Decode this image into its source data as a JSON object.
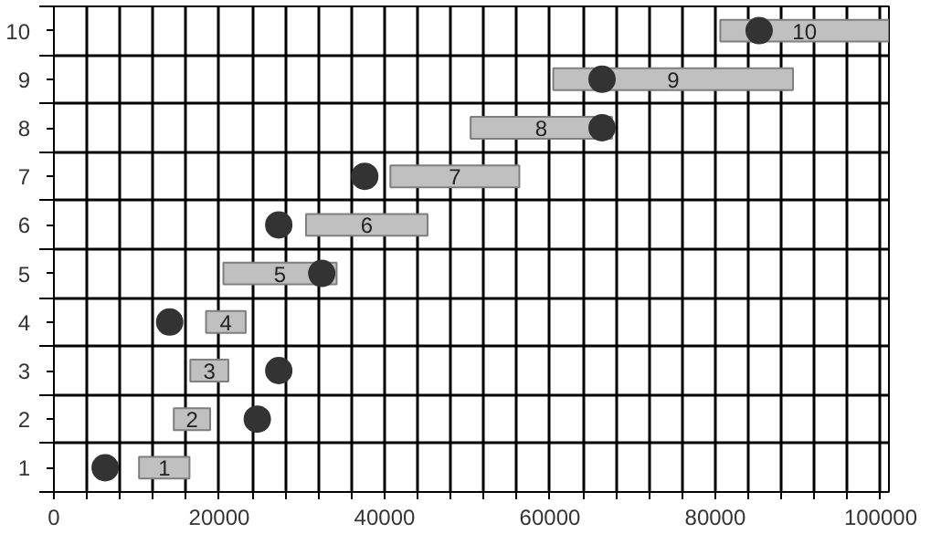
{
  "chart_data": {
    "type": "bar",
    "orientation": "horizontal",
    "categories": [
      "10",
      "9",
      "8",
      "7",
      "6",
      "5",
      "4",
      "3",
      "2",
      "1"
    ],
    "series": [
      {
        "color": "#c0c0c0",
        "base": [
          80600,
          60400,
          50400,
          40700,
          30500,
          20500,
          18400,
          16500,
          14500,
          10300
        ],
        "values": [
          20400,
          29000,
          17100,
          15600,
          14700,
          13700,
          4800,
          4600,
          4400,
          6100
        ]
      },
      {
        "type": "scatter",
        "color": "#333333",
        "values": [
          85300,
          66300,
          66300,
          37600,
          27200,
          32400,
          14000,
          27200,
          24600,
          6200
        ]
      }
    ],
    "annotations": [
      "10",
      "9",
      "8",
      "7",
      "6",
      "5",
      "4",
      "3",
      "2",
      "1"
    ],
    "xlim": [
      0,
      101000
    ],
    "xticks": [
      0,
      {
        "value": 4000,
        "label": null
      },
      {
        "value": 8000,
        "label": null
      },
      {
        "value": 12000,
        "label": null
      },
      {
        "value": 16000,
        "label": null
      },
      20000,
      {
        "value": 24000,
        "label": null
      },
      {
        "value": 28000,
        "label": null
      },
      {
        "value": 32000,
        "label": null
      },
      {
        "value": 36000,
        "label": null
      },
      40000,
      {
        "value": 44000,
        "label": null
      },
      {
        "value": 48000,
        "label": null
      },
      {
        "value": 52000,
        "label": null
      },
      {
        "value": 56000,
        "label": null
      },
      60000,
      {
        "value": 64000,
        "label": null
      },
      {
        "value": 68000,
        "label": null
      },
      {
        "value": 72000,
        "label": null
      },
      {
        "value": 76000,
        "label": null
      },
      80000,
      {
        "value": 84000,
        "label": null
      },
      {
        "value": 88000,
        "label": null
      },
      {
        "value": 92000,
        "label": null
      },
      {
        "value": 96000,
        "label": null
      },
      100000
    ],
    "grid": true,
    "marker": "circle"
  }
}
